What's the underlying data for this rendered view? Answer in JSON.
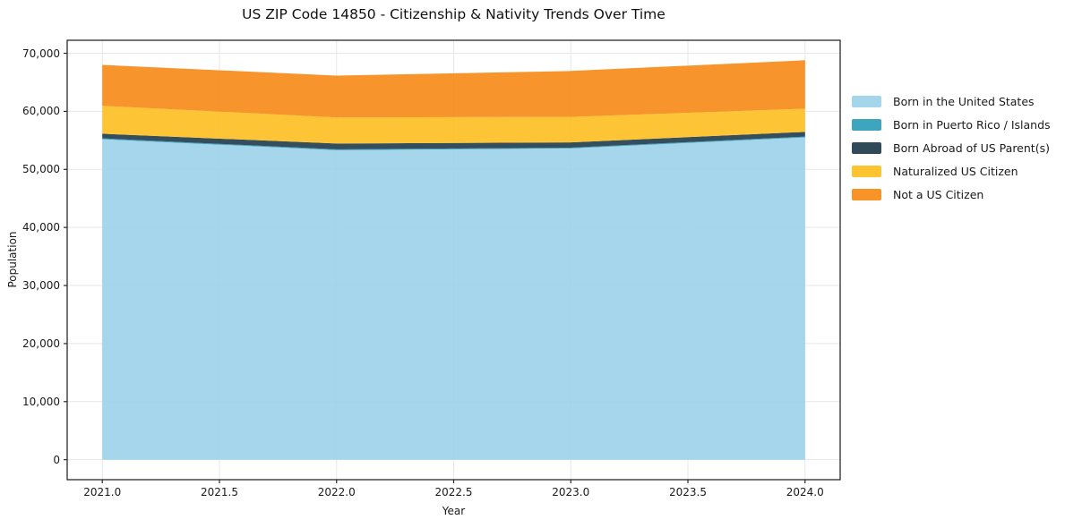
{
  "chart_data": {
    "type": "area",
    "stacked": true,
    "title": "US ZIP Code 14850 - Citizenship & Nativity Trends Over Time",
    "xlabel": "Year",
    "ylabel": "Population",
    "x": [
      2021,
      2022,
      2023,
      2024
    ],
    "series": [
      {
        "name": "Born in the United States",
        "color": "#9bd1e9",
        "values": [
          55200,
          53300,
          53600,
          55500
        ]
      },
      {
        "name": "Born in Puerto Rico / Islands",
        "color": "#2e9db9",
        "values": [
          150,
          150,
          150,
          150
        ]
      },
      {
        "name": "Born Abroad of US Parent(s)",
        "color": "#1e3b4c",
        "values": [
          800,
          1000,
          900,
          800
        ]
      },
      {
        "name": "Naturalized US Citizen",
        "color": "#fdbf1f",
        "values": [
          4800,
          4500,
          4400,
          4000
        ]
      },
      {
        "name": "Not a US Citizen",
        "color": "#f68a15",
        "values": [
          7050,
          7200,
          7900,
          8350
        ]
      }
    ],
    "xlim": [
      2020.85,
      2024.15
    ],
    "ylim": [
      -3440,
      72240
    ],
    "xticks": {
      "values": [
        2021.0,
        2021.5,
        2022.0,
        2022.5,
        2023.0,
        2023.5,
        2024.0
      ],
      "labels": [
        "2021.0",
        "2021.5",
        "2022.0",
        "2022.5",
        "2023.0",
        "2023.5",
        "2024.0"
      ]
    },
    "yticks": {
      "values": [
        0,
        10000,
        20000,
        30000,
        40000,
        50000,
        60000,
        70000
      ],
      "labels": [
        "0",
        "10,000",
        "20,000",
        "30,000",
        "40,000",
        "50,000",
        "60,000",
        "70,000"
      ]
    },
    "grid": true,
    "grid_color": "#e7e7e7",
    "legend_position": "right",
    "fill_opacity": 0.9,
    "spine_color": "#2b2b2b",
    "text_color": "#1a1a1a"
  }
}
